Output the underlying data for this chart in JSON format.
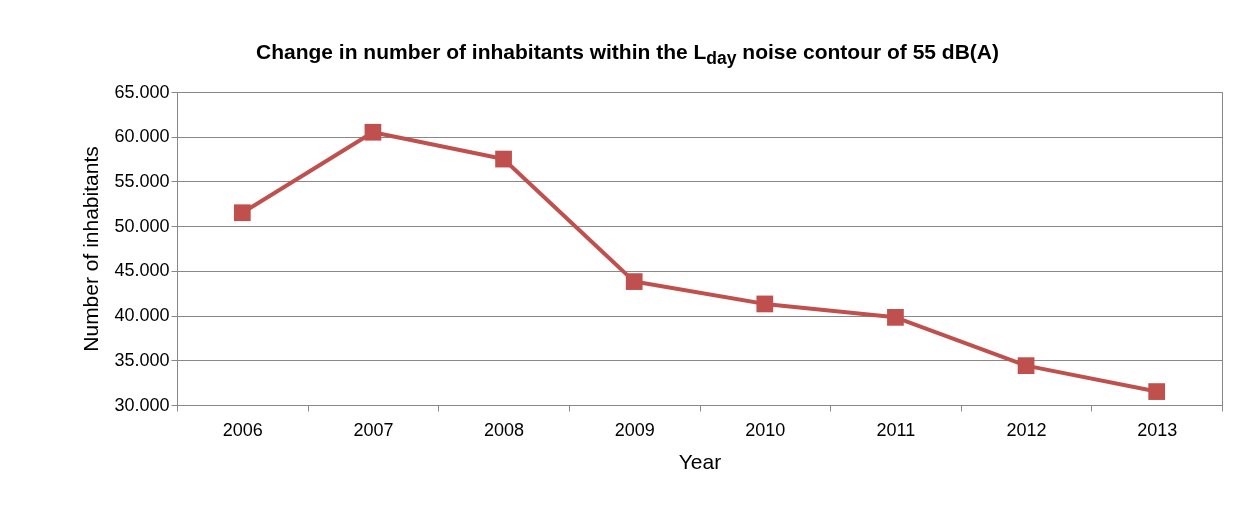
{
  "chart_data": {
    "type": "line",
    "title": "Change in number of inhabitants within the L$_{day}$ noise contour of 55 dB(A)",
    "xlabel": "Year",
    "ylabel": "Number of inhabitants",
    "categories": [
      "2006",
      "2007",
      "2008",
      "2009",
      "2010",
      "2011",
      "2012",
      "2013"
    ],
    "series": [
      {
        "color": "#c0504d",
        "values": [
          51500,
          60500,
          57500,
          43800,
          41300,
          39800,
          34400,
          31500
        ]
      }
    ],
    "ylim": [
      30000,
      65000
    ],
    "yticks": [
      {
        "value": 30000,
        "label": "30.000"
      },
      {
        "value": 35000,
        "label": "35.000"
      },
      {
        "value": 40000,
        "label": "40.000"
      },
      {
        "value": 45000,
        "label": "45.000"
      },
      {
        "value": 50000,
        "label": "50.000"
      },
      {
        "value": 55000,
        "label": "55.000"
      },
      {
        "value": 60000,
        "label": "60.000"
      },
      {
        "value": 65000,
        "label": "65.000"
      }
    ],
    "grid": "y",
    "marker": "square",
    "line_style": "solid"
  }
}
